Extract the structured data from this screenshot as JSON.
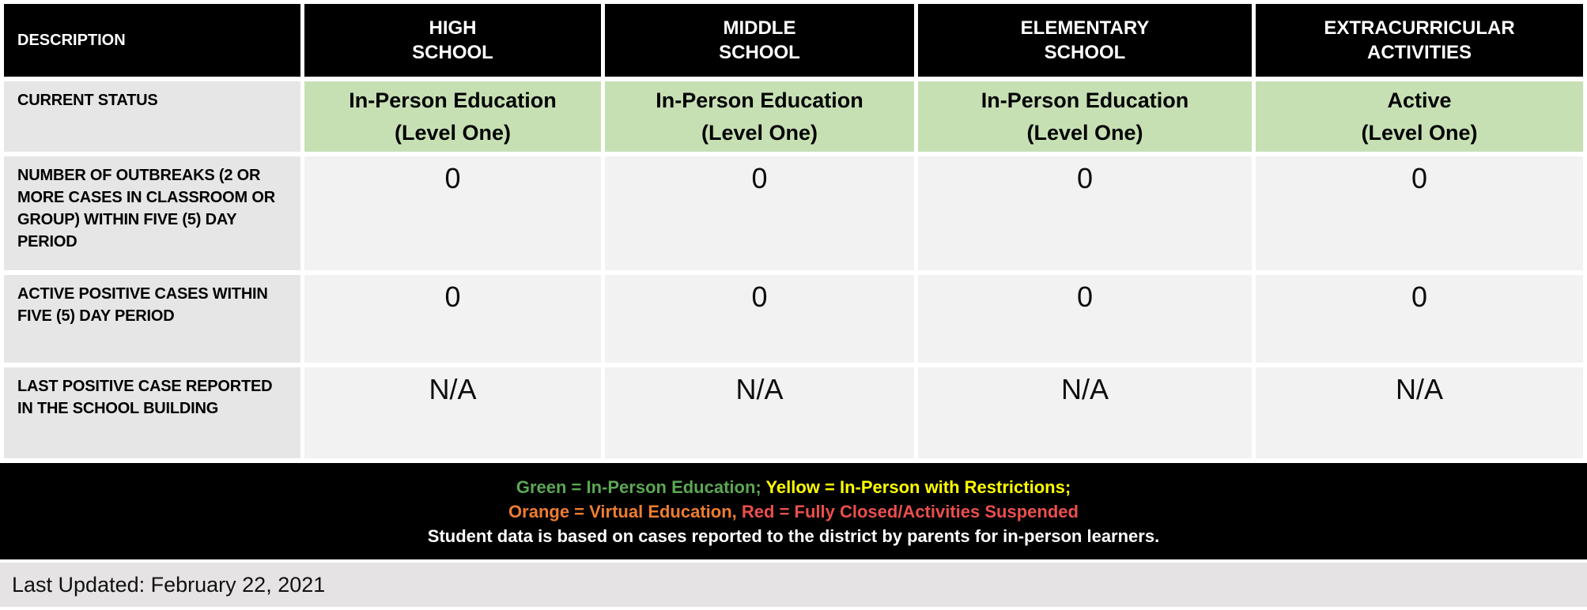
{
  "table": {
    "columns": [
      "DESCRIPTION",
      "HIGH\nSCHOOL",
      "MIDDLE\nSCHOOL",
      "ELEMENTARY\nSCHOOL",
      "EXTRACURRICULAR\nACTIVITIES"
    ],
    "rows": [
      {
        "label": "CURRENT STATUS",
        "values": [
          "In-Person Education\n(Level One)",
          "In-Person Education\n(Level One)",
          "In-Person Education\n(Level One)",
          "Active\n(Level One)"
        ]
      },
      {
        "label": "NUMBER OF OUTBREAKS (2 OR MORE CASES IN CLASSROOM OR GROUP) WITHIN FIVE (5) DAY PERIOD",
        "values": [
          "0",
          "0",
          "0",
          "0"
        ]
      },
      {
        "label": "ACTIVE POSITIVE CASES WITHIN FIVE (5) DAY PERIOD",
        "values": [
          "0",
          "0",
          "0",
          "0"
        ]
      },
      {
        "label": "LAST POSITIVE CASE REPORTED IN THE SCHOOL BUILDING",
        "values": [
          "N/A",
          "N/A",
          "N/A",
          "N/A"
        ]
      }
    ]
  },
  "legend": {
    "line1_green": "Green = In-Person Education; ",
    "line1_yellow": "Yellow = In-Person with Restrictions;",
    "line2_orange": "Orange = Virtual Education, ",
    "line2_red": "Red = Fully Closed/Activities Suspended",
    "line3_white": "Student data is based on cases reported to the district by parents for in-person learners."
  },
  "footer": {
    "last_updated": "Last Updated: February 22, 2021"
  },
  "colors": {
    "header_bg": "#000000",
    "header_text": "#ffffff",
    "label_bg": "#e7e6e6",
    "value_bg": "#f2f2f2",
    "status_green_bg": "#c6e0b4",
    "legend_green": "#5ba853",
    "legend_yellow": "#ffff00",
    "legend_orange": "#ed7d31",
    "legend_red": "#ea4f4c",
    "footer_bar_bg": "#e5e3e3"
  }
}
